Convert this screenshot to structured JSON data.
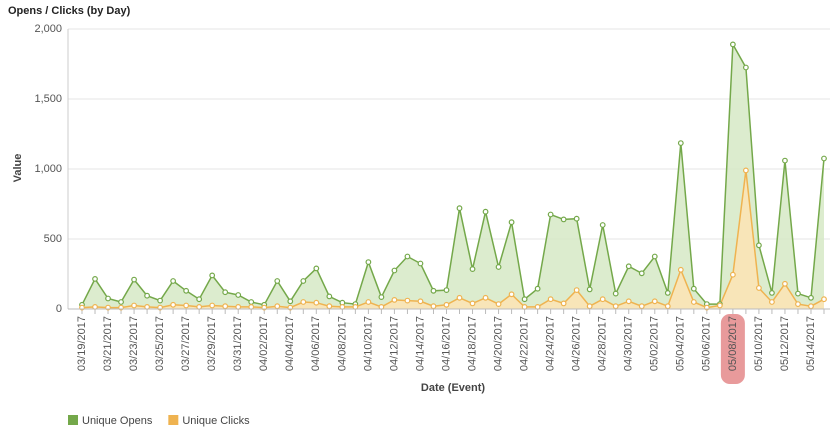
{
  "chart_data": {
    "type": "area",
    "title": "Opens / Clicks (by Day)",
    "x_label": "Date (Event)",
    "y_label": "Value",
    "categories": [
      "03/19/2017",
      null,
      "03/21/2017",
      null,
      "03/23/2017",
      null,
      "03/25/2017",
      null,
      "03/27/2017",
      null,
      "03/29/2017",
      null,
      "03/31/2017",
      null,
      "04/02/2017",
      null,
      "04/04/2017",
      null,
      "04/06/2017",
      null,
      "04/08/2017",
      null,
      "04/10/2017",
      null,
      "04/12/2017",
      null,
      "04/14/2017",
      null,
      "04/16/2017",
      null,
      "04/18/2017",
      null,
      "04/20/2017",
      null,
      "04/22/2017",
      null,
      "04/24/2017",
      null,
      "04/26/2017",
      null,
      "04/28/2017",
      null,
      "04/30/2017",
      null,
      "05/02/2017",
      null,
      "05/04/2017",
      null,
      "05/06/2017",
      null,
      "05/08/2017",
      null,
      "05/10/2017",
      null,
      "05/12/2017",
      null,
      "05/14/2017",
      null
    ],
    "series": [
      {
        "name": "Unique Opens",
        "color": "#74a84a",
        "fill": "#d6e9c6",
        "values": [
          30,
          215,
          75,
          50,
          210,
          95,
          60,
          200,
          130,
          70,
          240,
          120,
          100,
          50,
          30,
          200,
          55,
          200,
          290,
          90,
          45,
          35,
          335,
          85,
          275,
          375,
          325,
          130,
          135,
          720,
          285,
          695,
          300,
          620,
          70,
          145,
          675,
          640,
          645,
          140,
          600,
          110,
          305,
          255,
          375,
          115,
          1185,
          145,
          35,
          35,
          1890,
          1725,
          455,
          115,
          1060,
          110,
          80,
          1075
        ]
      },
      {
        "name": "Unique Clicks",
        "color": "#efb350",
        "fill": "#fde4b4",
        "values": [
          10,
          15,
          10,
          10,
          25,
          15,
          10,
          30,
          25,
          15,
          25,
          20,
          15,
          15,
          10,
          20,
          10,
          50,
          45,
          20,
          15,
          15,
          50,
          15,
          65,
          60,
          55,
          20,
          30,
          80,
          40,
          80,
          35,
          105,
          15,
          15,
          70,
          40,
          135,
          20,
          70,
          20,
          55,
          20,
          55,
          20,
          280,
          50,
          10,
          25,
          245,
          990,
          150,
          50,
          180,
          35,
          20,
          70
        ]
      }
    ],
    "ylim": [
      0,
      2000
    ],
    "yticks": [
      0,
      500,
      {
        "value": 1000,
        "label": "1,000"
      },
      {
        "value": 1500,
        "label": "1,500"
      },
      {
        "value": 2000,
        "label": "2,000"
      }
    ],
    "grid": true,
    "legend": "bottom-left",
    "highlight_category": "05/08/2017"
  }
}
